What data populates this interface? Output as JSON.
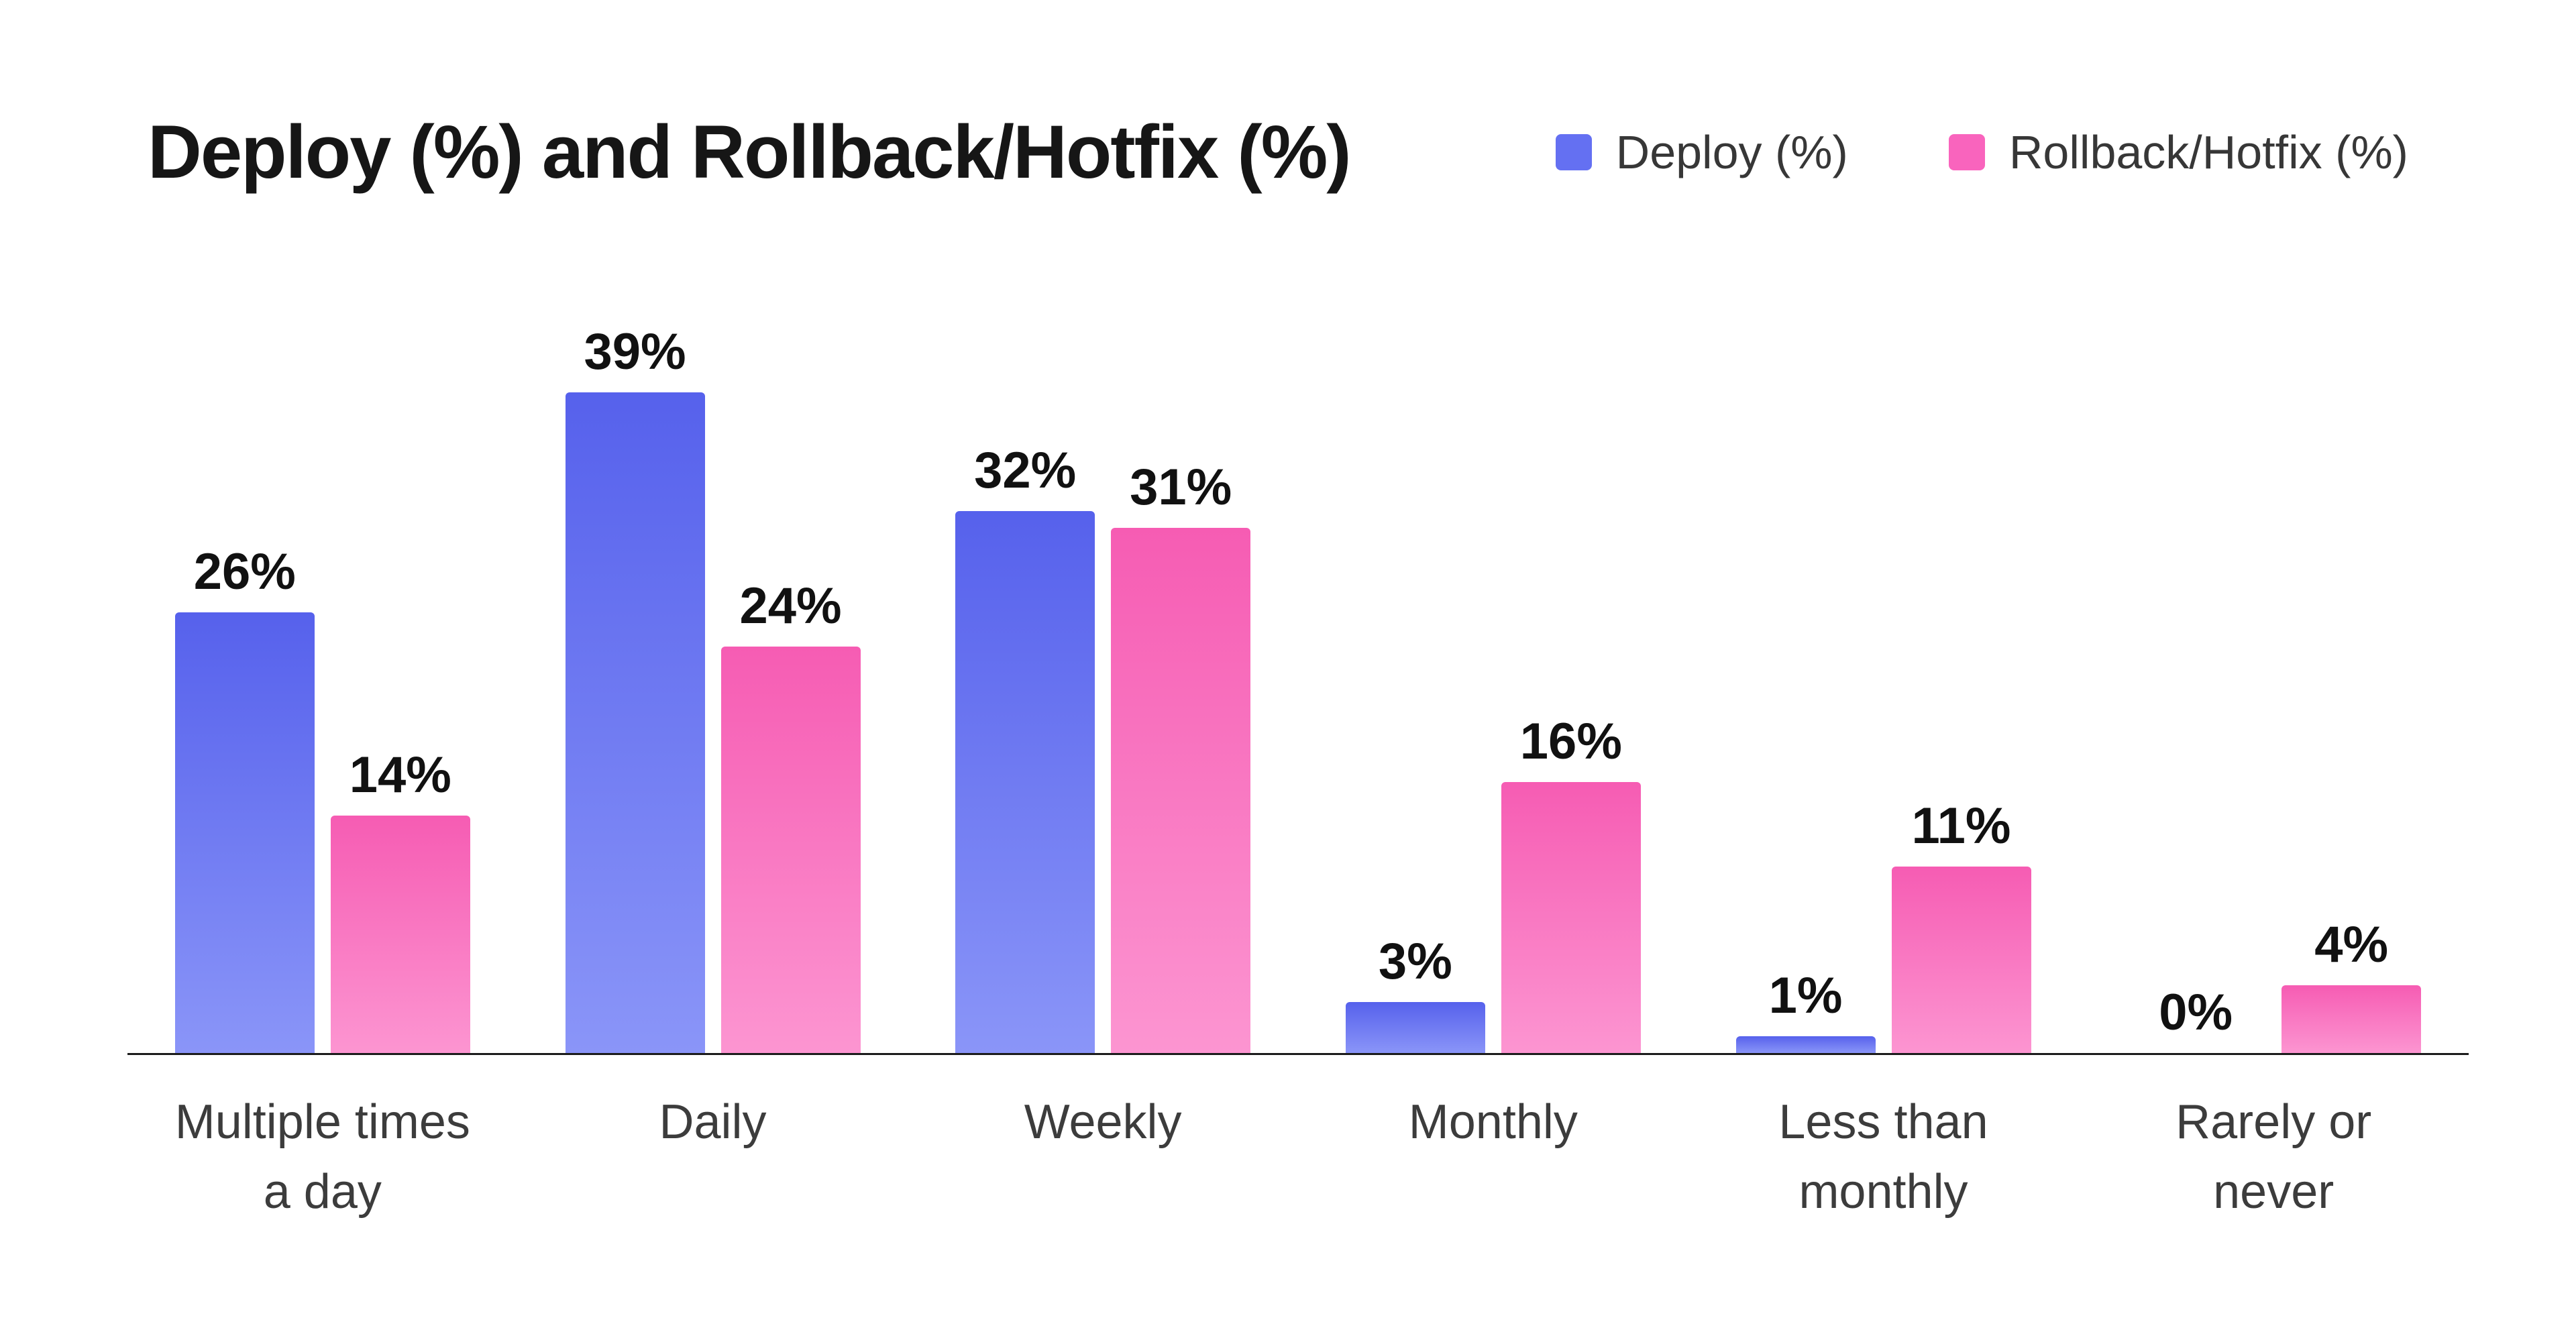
{
  "chart_data": {
    "type": "bar",
    "title": "Deploy (%) and Rollback/Hotfix (%)",
    "categories": [
      "Multiple times a day",
      "Daily",
      "Weekly",
      "Monthly",
      "Less than monthly",
      "Rarely or never"
    ],
    "series": [
      {
        "name": "Deploy (%)",
        "values": [
          26,
          39,
          32,
          3,
          1,
          0
        ],
        "color_top": "#5661ec",
        "color_bottom": "#8a95f8",
        "legend_color": "#6470f2"
      },
      {
        "name": "Rollback/Hotfix (%)",
        "values": [
          14,
          24,
          31,
          16,
          11,
          4
        ],
        "color_top": "#f65cb3",
        "color_bottom": "#fc95d1",
        "legend_color": "#f964bd"
      }
    ],
    "value_suffix": "%",
    "value_labels": true,
    "xlabel": "",
    "ylabel": "",
    "ylim": [
      0,
      40
    ],
    "grid": false,
    "legend_position": "top-right"
  }
}
